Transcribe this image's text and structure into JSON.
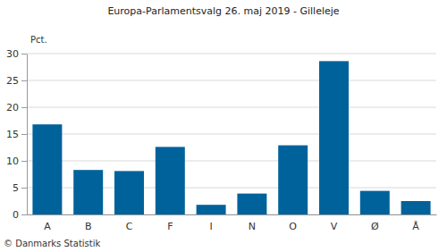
{
  "chart_data": {
    "type": "bar",
    "title": "Europa-Parlamentsvalg 26. maj 2019 - Gilleleje",
    "y_label": "Pct.",
    "source": "© Danmarks Statistik",
    "categories": [
      "A",
      "B",
      "C",
      "F",
      "I",
      "N",
      "O",
      "V",
      "Ø",
      "Å"
    ],
    "values": [
      16.8,
      8.3,
      8.1,
      12.6,
      1.8,
      3.9,
      12.9,
      28.6,
      4.4,
      2.5
    ],
    "color": "#00629b",
    "ylim": [
      0,
      30
    ],
    "yticks": [
      0,
      5,
      10,
      15,
      20,
      25,
      30
    ],
    "grid": true
  }
}
